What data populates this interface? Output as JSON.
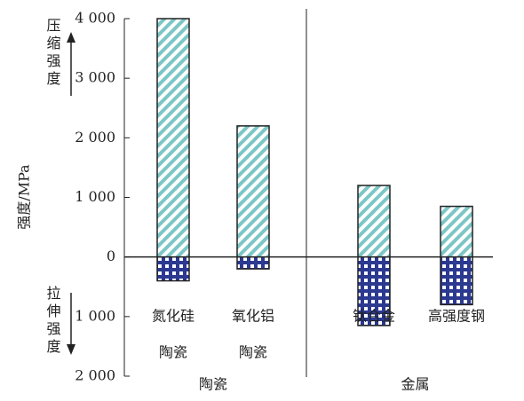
{
  "chart_data": {
    "type": "bar",
    "ylabel": "强度/MPa",
    "categories": [
      [
        "氮化硅",
        "陶瓷"
      ],
      [
        "氧化铝",
        "陶瓷"
      ],
      [
        "钛合金"
      ],
      [
        "高强度钢"
      ]
    ],
    "groups": [
      {
        "name": "陶瓷",
        "members": [
          0,
          1
        ]
      },
      {
        "name": "金属",
        "members": [
          2,
          3
        ]
      }
    ],
    "series": [
      {
        "name": "压缩强度",
        "color": "#7cc6c6",
        "values": [
          4000,
          2200,
          1200,
          850
        ]
      },
      {
        "name": "拉伸强度",
        "color": "#2b3990",
        "values": [
          -400,
          -200,
          -1150,
          -800
        ]
      }
    ],
    "ylim": [
      -2000,
      4000
    ],
    "yticks": [
      {
        "value": -2000,
        "label": "2 000"
      },
      {
        "value": -1000,
        "label": "1 000"
      },
      0,
      {
        "value": 1000,
        "label": "1 000"
      },
      {
        "value": 2000,
        "label": "2 000"
      },
      {
        "value": 3000,
        "label": "3 000"
      },
      {
        "value": 4000,
        "label": "4 000"
      }
    ]
  }
}
